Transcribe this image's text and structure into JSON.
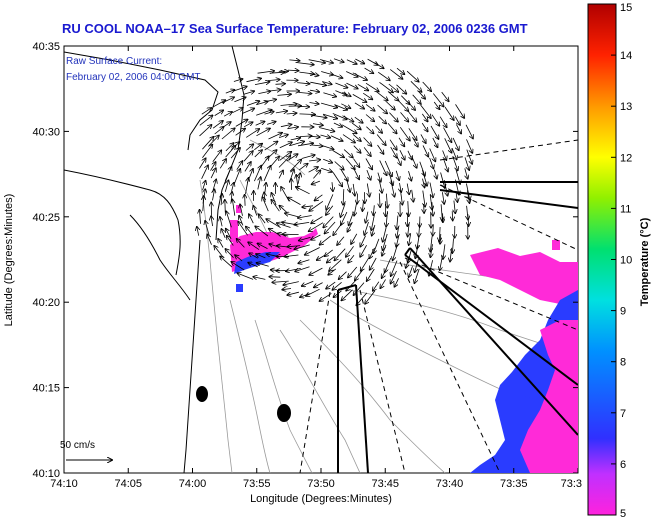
{
  "title": "RU COOL  NOAA–17  Sea Surface Temperature:  February 02, 2006 0236 GMT",
  "overlay": {
    "line1": "Raw Surface Current:",
    "line2": "February 02, 2006 04:00 GMT"
  },
  "axes": {
    "xlabel": "Longitude (Degrees:Minutes)",
    "ylabel": "Latitude (Degrees:Minutes)",
    "x_ticks": [
      "74:10",
      "74:05",
      "74:00",
      "73:55",
      "73:50",
      "73:45",
      "73:40",
      "73:35",
      "73:3"
    ],
    "y_ticks": [
      "40:35",
      "40:30",
      "40:25",
      "40:20",
      "40:15",
      "40:10"
    ]
  },
  "colorbar": {
    "label": "Temperature (°C)",
    "ticks": [
      "15",
      "14",
      "13",
      "12",
      "11",
      "10",
      "9",
      "8",
      "7",
      "6",
      "5"
    ],
    "range": [
      5,
      15
    ]
  },
  "scale_arrow": {
    "label": "50 cm/s"
  },
  "colors": {
    "title": "#1a1ad0",
    "land": "#ffffff",
    "contour": "#9a9a9a",
    "sst_warm": "#ff2ad8",
    "sst_cool": "#2a3cff"
  }
}
